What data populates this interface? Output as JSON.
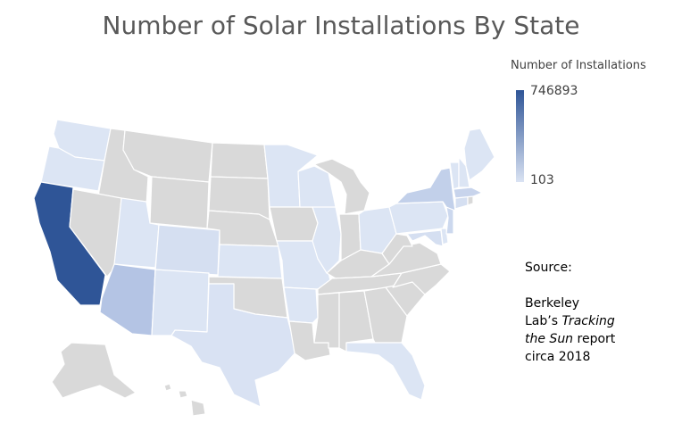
{
  "title": "Number of Solar Installations By State",
  "legend": {
    "title": "Number of Installations",
    "max": "746893",
    "min": "103",
    "color_max": "#2f5597",
    "color_min": "#dae3f3",
    "no_data_color": "#d9d9d9"
  },
  "source": {
    "label": "Source:",
    "line1": "Berkeley",
    "line2_prefix": "Lab’s ",
    "line2_italic": "Tracking",
    "line3_italic": "the Sun",
    "line3_suffix": " report",
    "line4": "circa 2018"
  },
  "states_with_data": {
    "CA": "#2f5597",
    "AZ": "#b4c4e4",
    "NY": "#c2d0ea",
    "MA": "#c8d4ec",
    "NJ": "#ccd8ee",
    "CO": "#d5dff1",
    "TX": "#d9e2f3",
    "OR": "#dce5f4",
    "WA": "#dce5f4",
    "NV": "#d9d9d9",
    "UT": "#dce5f4",
    "NM": "#dce5f4",
    "KS": "#dce5f4",
    "MN": "#dce5f4",
    "WI": "#dce5f4",
    "IL": "#dce5f4",
    "MO": "#dce5f4",
    "AR": "#dce5f4",
    "OH": "#dce5f4",
    "PA": "#dce5f4",
    "MD": "#d5dff1",
    "DE": "#dce5f4",
    "CT": "#d5dff1",
    "VT": "#dce5f4",
    "NH": "#dce5f4",
    "ME": "#dce5f4",
    "FL": "#dce5f4"
  }
}
